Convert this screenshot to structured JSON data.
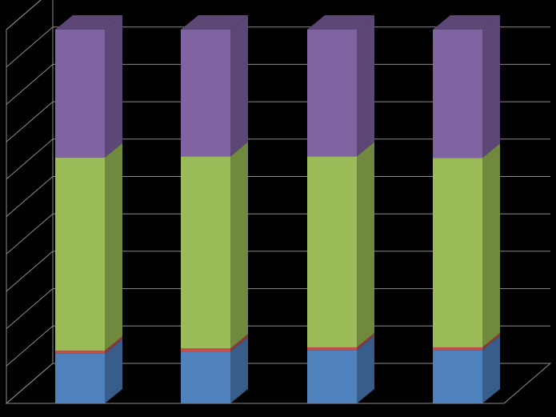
{
  "chart_data": {
    "type": "bar",
    "stacked": true,
    "percent_stacked": true,
    "three_d": true,
    "title": "",
    "xlabel": "",
    "ylabel": "",
    "ylim": [
      0,
      100
    ],
    "grid": true,
    "legend": "none",
    "categories": [
      "",
      "",
      "",
      ""
    ],
    "series": [
      {
        "values": [
          13.3,
          13.9,
          14.3,
          14.3
        ],
        "color": "#4f81bd",
        "side_color": "#385d8a",
        "top_color": "#385d8a"
      },
      {
        "values": [
          0.8,
          0.8,
          0.7,
          0.7
        ],
        "color": "#c0504d",
        "side_color": "#8c3836",
        "top_color": "#8c3836"
      },
      {
        "values": [
          51.7,
          51.4,
          51.1,
          50.7
        ],
        "color": "#9bbb59",
        "side_color": "#71893f",
        "top_color": "#71893f"
      },
      {
        "values": [
          34.2,
          33.9,
          33.9,
          34.3
        ],
        "color": "#8064a2",
        "side_color": "#5c4776",
        "top_color": "#5c4776"
      }
    ]
  }
}
